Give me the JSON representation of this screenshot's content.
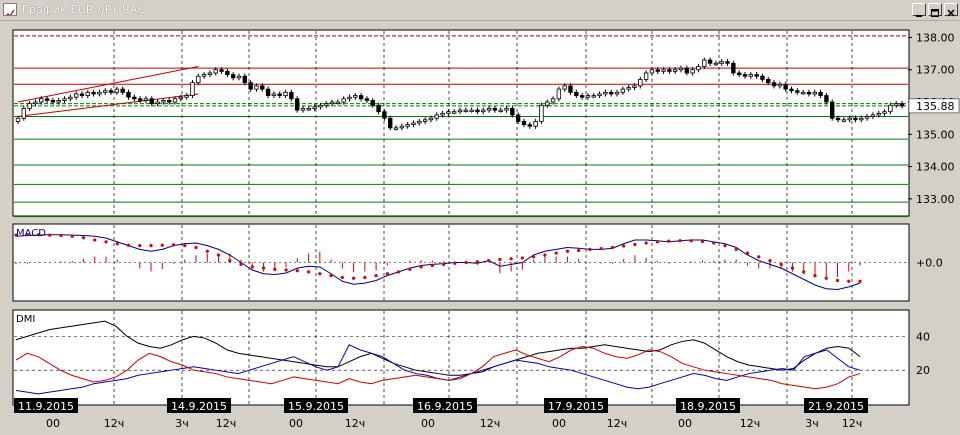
{
  "window": {
    "title": "График EUR /JPY ЧАС"
  },
  "chart_data": {
    "instrument": "EUR/JPY",
    "timeframe": "ЧАС",
    "price_panel": {
      "type": "candlestick",
      "y_ticks": [
        "138.00",
        "137.00",
        "136.00",
        "135.00",
        "134.00",
        "133.00"
      ],
      "ylim": [
        132.5,
        138.2
      ],
      "current_price": "135.88",
      "levels": [
        {
          "value": 138.05,
          "color": "#b00000",
          "style": "dashed"
        },
        {
          "value": 137.05,
          "color": "#c00000",
          "style": "solid"
        },
        {
          "value": 136.55,
          "color": "#c00000",
          "style": "solid"
        },
        {
          "value": 135.95,
          "color": "#008000",
          "style": "dashed"
        },
        {
          "value": 135.88,
          "color": "#008000",
          "style": "dashed"
        },
        {
          "value": 135.55,
          "color": "#008000",
          "style": "solid"
        },
        {
          "value": 134.85,
          "color": "#008000",
          "style": "solid"
        },
        {
          "value": 134.05,
          "color": "#008000",
          "style": "solid"
        },
        {
          "value": 133.45,
          "color": "#008000",
          "style": "solid"
        },
        {
          "value": 132.9,
          "color": "#008000",
          "style": "solid"
        },
        {
          "value": 132.45,
          "color": "#008000",
          "style": "solid"
        }
      ],
      "channel": {
        "upper": [
          [
            0,
            136.0
          ],
          [
            31,
            137.1
          ]
        ],
        "lower": [
          [
            0,
            135.55
          ],
          [
            31,
            136.25
          ]
        ]
      },
      "closes": [
        135.5,
        135.8,
        135.95,
        136.0,
        136.1,
        136.05,
        136.0,
        136.05,
        136.1,
        136.15,
        136.25,
        136.2,
        136.3,
        136.25,
        136.3,
        136.35,
        136.3,
        136.4,
        136.3,
        136.15,
        136.1,
        136.05,
        136.1,
        135.95,
        136.0,
        136.05,
        136.0,
        136.1,
        136.15,
        136.2,
        136.6,
        136.8,
        136.85,
        136.9,
        137.0,
        136.95,
        136.85,
        136.75,
        136.8,
        136.6,
        136.4,
        136.5,
        136.4,
        136.2,
        136.25,
        136.2,
        136.3,
        136.1,
        135.75,
        135.8,
        135.8,
        135.85,
        135.9,
        135.95,
        136.0,
        136.0,
        136.1,
        136.15,
        136.2,
        136.1,
        136.05,
        135.9,
        135.7,
        135.5,
        135.2,
        135.2,
        135.25,
        135.3,
        135.35,
        135.4,
        135.45,
        135.5,
        135.6,
        135.65,
        135.7,
        135.7,
        135.75,
        135.75,
        135.75,
        135.7,
        135.75,
        135.8,
        135.75,
        135.75,
        135.8,
        135.6,
        135.4,
        135.3,
        135.25,
        135.4,
        135.9,
        136.0,
        136.1,
        136.4,
        136.5,
        136.3,
        136.2,
        136.15,
        136.2,
        136.2,
        136.25,
        136.3,
        136.25,
        136.3,
        136.4,
        136.45,
        136.5,
        136.7,
        136.9,
        137.0,
        136.95,
        137.0,
        136.95,
        137.0,
        137.05,
        136.9,
        137.0,
        137.1,
        137.3,
        137.2,
        137.2,
        137.25,
        137.2,
        136.9,
        136.85,
        136.8,
        136.85,
        136.8,
        136.7,
        136.6,
        136.5,
        136.55,
        136.4,
        136.35,
        136.3,
        136.3,
        136.25,
        136.3,
        136.2,
        136.0,
        135.5,
        135.45,
        135.45,
        135.5,
        135.45,
        135.5,
        135.55,
        135.6,
        135.65,
        135.7,
        135.9,
        135.95,
        135.88
      ]
    },
    "macd_panel": {
      "label": "MACD",
      "y_ticks": [
        "+0.0"
      ],
      "ylim": [
        -1,
        1
      ],
      "macd": [
        0.7,
        0.72,
        0.73,
        0.74,
        0.74,
        0.73,
        0.72,
        0.7,
        0.65,
        0.55,
        0.45,
        0.35,
        0.3,
        0.35,
        0.45,
        0.5,
        0.52,
        0.45,
        0.35,
        0.2,
        0.0,
        -0.2,
        -0.3,
        -0.32,
        -0.28,
        -0.15,
        -0.1,
        -0.12,
        -0.3,
        -0.5,
        -0.58,
        -0.55,
        -0.48,
        -0.35,
        -0.25,
        -0.15,
        -0.08,
        -0.05,
        -0.03,
        0.0,
        0.0,
        -0.02,
        0.05,
        -0.1,
        -0.05,
        0.0,
        0.2,
        0.3,
        0.35,
        0.4,
        0.38,
        0.35,
        0.35,
        0.38,
        0.5,
        0.6,
        0.6,
        0.58,
        0.55,
        0.58,
        0.6,
        0.6,
        0.55,
        0.5,
        0.4,
        0.2,
        0.05,
        -0.05,
        -0.15,
        -0.3,
        -0.45,
        -0.6,
        -0.7,
        -0.72,
        -0.65,
        -0.55
      ],
      "signal": [
        0.73,
        0.74,
        0.74,
        0.73,
        0.72,
        0.7,
        0.66,
        0.6,
        0.55,
        0.5,
        0.46,
        0.45,
        0.45,
        0.46,
        0.47,
        0.45,
        0.4,
        0.3,
        0.2,
        0.05,
        -0.05,
        -0.12,
        -0.15,
        -0.18,
        -0.2,
        -0.22,
        -0.25,
        -0.3,
        -0.35,
        -0.4,
        -0.42,
        -0.4,
        -0.35,
        -0.3,
        -0.25,
        -0.18,
        -0.12,
        -0.08,
        -0.05,
        -0.02,
        0.0,
        0.02,
        0.05,
        0.08,
        0.1,
        0.12,
        0.15,
        0.2,
        0.25,
        0.3,
        0.32,
        0.35,
        0.37,
        0.4,
        0.44,
        0.48,
        0.52,
        0.55,
        0.57,
        0.58,
        0.58,
        0.56,
        0.52,
        0.45,
        0.35,
        0.25,
        0.15,
        0.05,
        -0.05,
        -0.15,
        -0.25,
        -0.35,
        -0.42,
        -0.48,
        -0.5,
        -0.5
      ]
    },
    "dmi_panel": {
      "label": "DMI",
      "y_ticks": [
        "40",
        "20"
      ],
      "ylim": [
        0,
        55
      ],
      "adx": [
        38,
        40,
        42,
        44,
        45,
        46,
        47,
        48,
        49,
        46,
        40,
        36,
        34,
        33,
        35,
        38,
        40,
        39,
        36,
        32,
        30,
        29,
        28,
        27,
        26,
        25,
        24,
        23,
        22,
        22,
        25,
        28,
        30,
        27,
        24,
        22,
        20,
        19,
        18,
        17,
        17,
        18,
        19,
        22,
        24,
        26,
        28,
        30,
        31,
        32,
        33,
        33,
        34,
        35,
        34,
        33,
        32,
        31,
        32,
        35,
        37,
        38,
        36,
        32,
        28,
        25,
        23,
        22,
        21,
        20,
        21,
        26,
        30,
        33,
        34,
        33,
        28
      ],
      "plus_di": [
        8,
        7,
        6,
        7,
        8,
        9,
        10,
        12,
        13,
        14,
        15,
        17,
        18,
        19,
        20,
        21,
        22,
        21,
        20,
        19,
        18,
        20,
        22,
        24,
        26,
        28,
        25,
        22,
        20,
        22,
        35,
        32,
        30,
        28,
        24,
        20,
        18,
        17,
        15,
        14,
        16,
        18,
        20,
        22,
        24,
        26,
        25,
        24,
        22,
        21,
        20,
        18,
        16,
        14,
        12,
        10,
        9,
        10,
        12,
        14,
        16,
        18,
        17,
        15,
        14,
        16,
        18,
        19,
        20,
        21,
        20,
        28,
        30,
        32,
        27,
        22,
        20
      ],
      "minus_di": [
        26,
        30,
        28,
        24,
        20,
        17,
        15,
        13,
        14,
        16,
        20,
        26,
        30,
        28,
        25,
        23,
        20,
        19,
        18,
        16,
        15,
        14,
        13,
        12,
        14,
        16,
        15,
        14,
        13,
        12,
        15,
        13,
        12,
        14,
        15,
        16,
        17,
        16,
        15,
        14,
        15,
        18,
        22,
        28,
        30,
        32,
        29,
        27,
        25,
        28,
        32,
        34,
        33,
        30,
        28,
        27,
        29,
        32,
        31,
        28,
        24,
        22,
        20,
        19,
        18,
        17,
        16,
        15,
        14,
        12,
        11,
        10,
        9,
        10,
        12,
        16,
        18
      ]
    },
    "x_axis": {
      "date_labels": [
        "11.9.2015",
        "14.9.2015",
        "15.9.2015",
        "16.9.2015",
        "17.9.2015",
        "18.9.2015",
        "21.9.2015"
      ],
      "hour_labels": [
        "00",
        "12ч",
        "3ч",
        "12ч",
        "00",
        "12ч",
        "00",
        "12ч",
        "00",
        "12ч",
        "00",
        "12ч",
        "3ч",
        "12ч"
      ]
    },
    "colors": {
      "panel_bg": "#ffffff",
      "grid": "#000000",
      "support": "#008000",
      "resistance": "#c00000",
      "macd_line": "#000080",
      "signal_dots": "#e00000",
      "adx": "#000000",
      "plus_di": "#0000c0",
      "minus_di": "#d00000",
      "label_bg": "#000000",
      "label_text": "#ffffff"
    }
  }
}
